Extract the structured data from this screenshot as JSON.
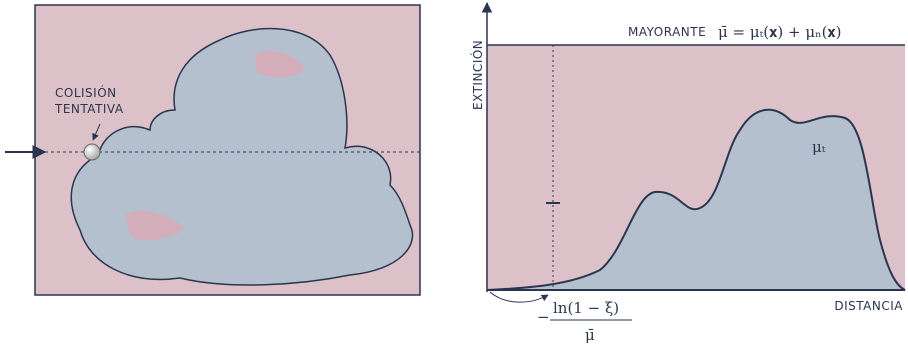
{
  "left_panel": {
    "label_lines": [
      "COLISIÓN",
      "TENTATIVA"
    ]
  },
  "right_panel": {
    "y_axis_label": "EXTINCIÓN",
    "x_axis_label": "DISTANCIA",
    "majorant_label": "MAYORANTE",
    "majorant_formula": "μ̄ = μₜ(𝐱) + μₙ(𝐱)",
    "curve_label": "μₜ",
    "sample_formula": {
      "sign": "−",
      "numerator": "ln(1 − ξ)",
      "denominator": "μ̄"
    }
  }
}
